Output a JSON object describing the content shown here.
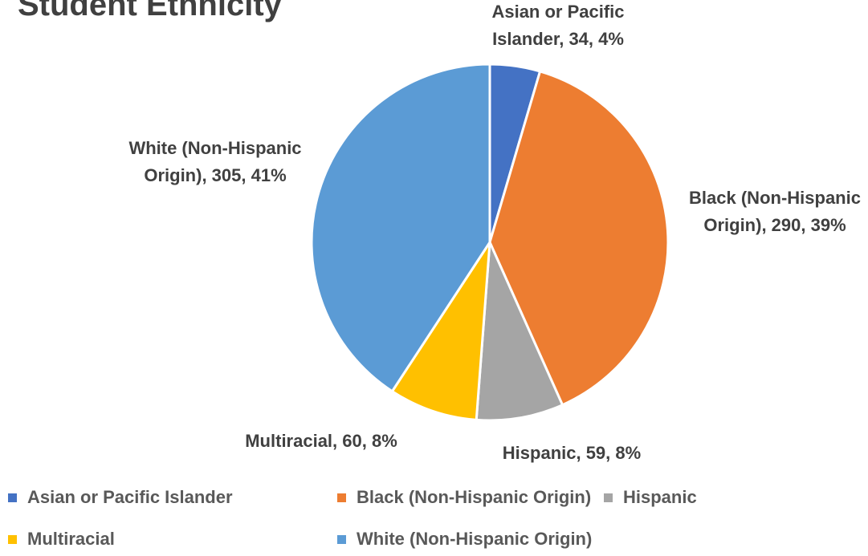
{
  "chart_data": {
    "type": "pie",
    "title": "Student Ethnicity",
    "categories": [
      "Asian or Pacific Islander",
      "Black (Non-Hispanic Origin)",
      "Hispanic",
      "Multiracial",
      "White (Non-Hispanic Origin)"
    ],
    "values": [
      34,
      290,
      59,
      60,
      305
    ],
    "value_labels": [
      "Asian or Pacific Islander, 34, 4%",
      "Black (Non-Hispanic Origin), 290, 39%",
      "Hispanic, 59, 8%",
      "Multiracial, 60, 8%",
      "White (Non-Hispanic Origin), 305, 41%"
    ],
    "colors": [
      "#4472c4",
      "#ed7d31",
      "#a5a5a5",
      "#ffc000",
      "#5b9bd5"
    ],
    "legend": "bottom"
  }
}
